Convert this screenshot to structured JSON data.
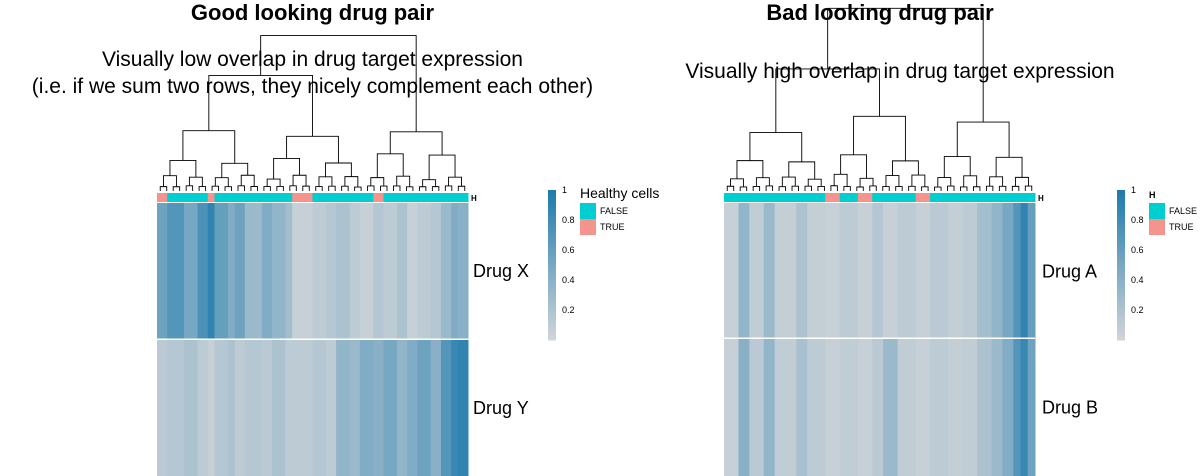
{
  "colors": {
    "healthy_false": "#00CED1",
    "healthy_true": "#F4948C",
    "scale_low": "#cfd4d8",
    "scale_high": "#1f7bad",
    "dendrogram": "#000000"
  },
  "panels": [
    {
      "title": "Good looking drug pair",
      "subtitle_lines": [
        "Visually low overlap in drug target expression",
        "(i.e. if we sum two rows, they nicely complement each other)"
      ],
      "annotation_tag": "H",
      "legend_title": "Healthy cells",
      "legend_labels": [
        "FALSE",
        "TRUE"
      ],
      "colorbar_ticks": [
        "1",
        "0.8",
        "0.6",
        "0.4",
        "0.2"
      ],
      "row_labels": [
        "Drug X",
        "Drug Y"
      ]
    },
    {
      "title": "Bad looking drug pair",
      "subtitle_lines": [
        "Visually high overlap in drug target expression"
      ],
      "annotation_tag": "H",
      "legend_title": "H",
      "legend_labels": [
        "FALSE",
        "TRUE"
      ],
      "colorbar_ticks": [
        "1",
        "0.8",
        "0.6",
        "0.4",
        "0.2"
      ],
      "row_labels": [
        "Drug A",
        "Drug B"
      ]
    }
  ],
  "chart_data": [
    {
      "type": "heatmap",
      "title": "Good looking drug pair",
      "rows": [
        "Drug X",
        "Drug Y"
      ],
      "colorbar_range": [
        0,
        1
      ],
      "colorbar_ticks": [
        1,
        0.8,
        0.6,
        0.4,
        0.2
      ],
      "annotation": {
        "name": "Healthy cells",
        "levels": [
          "FALSE",
          "TRUE"
        ]
      },
      "column_segments": [
        {
          "span": 0.03,
          "x": 0.55,
          "y": 0.12,
          "healthy": "TRUE"
        },
        {
          "span": 0.05,
          "x": 0.7,
          "y": 0.15,
          "healthy": "FALSE"
        },
        {
          "span": 0.04,
          "x": 0.5,
          "y": 0.2,
          "healthy": "FALSE"
        },
        {
          "span": 0.03,
          "x": 0.75,
          "y": 0.1,
          "healthy": "FALSE"
        },
        {
          "span": 0.02,
          "x": 0.9,
          "y": 0.05,
          "healthy": "TRUE"
        },
        {
          "span": 0.04,
          "x": 0.6,
          "y": 0.15,
          "healthy": "FALSE"
        },
        {
          "span": 0.02,
          "x": 0.45,
          "y": 0.2,
          "healthy": "FALSE"
        },
        {
          "span": 0.03,
          "x": 0.55,
          "y": 0.1,
          "healthy": "FALSE"
        },
        {
          "span": 0.05,
          "x": 0.3,
          "y": 0.15,
          "healthy": "FALSE"
        },
        {
          "span": 0.03,
          "x": 0.45,
          "y": 0.12,
          "healthy": "FALSE"
        },
        {
          "span": 0.04,
          "x": 0.35,
          "y": 0.2,
          "healthy": "FALSE"
        },
        {
          "span": 0.02,
          "x": 0.25,
          "y": 0.1,
          "healthy": "FALSE"
        },
        {
          "span": 0.06,
          "x": 0.05,
          "y": 0.1,
          "healthy": "TRUE"
        },
        {
          "span": 0.04,
          "x": 0.1,
          "y": 0.15,
          "healthy": "FALSE"
        },
        {
          "span": 0.03,
          "x": 0.15,
          "y": 0.1,
          "healthy": "FALSE"
        },
        {
          "span": 0.04,
          "x": 0.2,
          "y": 0.35,
          "healthy": "FALSE"
        },
        {
          "span": 0.03,
          "x": 0.1,
          "y": 0.3,
          "healthy": "FALSE"
        },
        {
          "span": 0.04,
          "x": 0.05,
          "y": 0.45,
          "healthy": "FALSE"
        },
        {
          "span": 0.03,
          "x": 0.15,
          "y": 0.4,
          "healthy": "TRUE"
        },
        {
          "span": 0.04,
          "x": 0.1,
          "y": 0.5,
          "healthy": "FALSE"
        },
        {
          "span": 0.03,
          "x": 0.2,
          "y": 0.35,
          "healthy": "FALSE"
        },
        {
          "span": 0.03,
          "x": 0.05,
          "y": 0.45,
          "healthy": "FALSE"
        },
        {
          "span": 0.04,
          "x": 0.1,
          "y": 0.55,
          "healthy": "FALSE"
        },
        {
          "span": 0.03,
          "x": 0.15,
          "y": 0.4,
          "healthy": "FALSE"
        },
        {
          "span": 0.03,
          "x": 0.3,
          "y": 0.7,
          "healthy": "FALSE"
        },
        {
          "span": 0.02,
          "x": 0.45,
          "y": 0.85,
          "healthy": "FALSE"
        },
        {
          "span": 0.03,
          "x": 0.4,
          "y": 0.9,
          "healthy": "FALSE"
        }
      ]
    },
    {
      "type": "heatmap",
      "title": "Bad looking drug pair",
      "rows": [
        "Drug A",
        "Drug B"
      ],
      "colorbar_range": [
        0,
        1
      ],
      "colorbar_ticks": [
        1,
        0.8,
        0.6,
        0.4,
        0.2
      ],
      "annotation": {
        "name": "H",
        "levels": [
          "FALSE",
          "TRUE"
        ]
      },
      "column_segments": [
        {
          "span": 0.04,
          "x": 0.05,
          "y": 0.05,
          "healthy": "FALSE"
        },
        {
          "span": 0.03,
          "x": 0.35,
          "y": 0.4,
          "healthy": "FALSE"
        },
        {
          "span": 0.04,
          "x": 0.08,
          "y": 0.12,
          "healthy": "FALSE"
        },
        {
          "span": 0.03,
          "x": 0.3,
          "y": 0.35,
          "healthy": "FALSE"
        },
        {
          "span": 0.06,
          "x": 0.07,
          "y": 0.08,
          "healthy": "FALSE"
        },
        {
          "span": 0.03,
          "x": 0.2,
          "y": 0.22,
          "healthy": "FALSE"
        },
        {
          "span": 0.05,
          "x": 0.06,
          "y": 0.1,
          "healthy": "FALSE"
        },
        {
          "span": 0.04,
          "x": 0.05,
          "y": 0.05,
          "healthy": "TRUE"
        },
        {
          "span": 0.05,
          "x": 0.1,
          "y": 0.08,
          "healthy": "FALSE"
        },
        {
          "span": 0.04,
          "x": 0.05,
          "y": 0.05,
          "healthy": "TRUE"
        },
        {
          "span": 0.03,
          "x": 0.15,
          "y": 0.12,
          "healthy": "FALSE"
        },
        {
          "span": 0.04,
          "x": 0.05,
          "y": 0.3,
          "healthy": "FALSE"
        },
        {
          "span": 0.05,
          "x": 0.1,
          "y": 0.08,
          "healthy": "FALSE"
        },
        {
          "span": 0.04,
          "x": 0.05,
          "y": 0.05,
          "healthy": "TRUE"
        },
        {
          "span": 0.05,
          "x": 0.12,
          "y": 0.1,
          "healthy": "FALSE"
        },
        {
          "span": 0.04,
          "x": 0.06,
          "y": 0.06,
          "healthy": "FALSE"
        },
        {
          "span": 0.04,
          "x": 0.1,
          "y": 0.08,
          "healthy": "FALSE"
        },
        {
          "span": 0.04,
          "x": 0.25,
          "y": 0.2,
          "healthy": "FALSE"
        },
        {
          "span": 0.03,
          "x": 0.35,
          "y": 0.3,
          "healthy": "FALSE"
        },
        {
          "span": 0.03,
          "x": 0.5,
          "y": 0.45,
          "healthy": "FALSE"
        },
        {
          "span": 0.02,
          "x": 0.7,
          "y": 0.7,
          "healthy": "FALSE"
        },
        {
          "span": 0.02,
          "x": 0.9,
          "y": 0.85,
          "healthy": "FALSE"
        },
        {
          "span": 0.02,
          "x": 0.6,
          "y": 0.55,
          "healthy": "FALSE"
        }
      ]
    }
  ]
}
